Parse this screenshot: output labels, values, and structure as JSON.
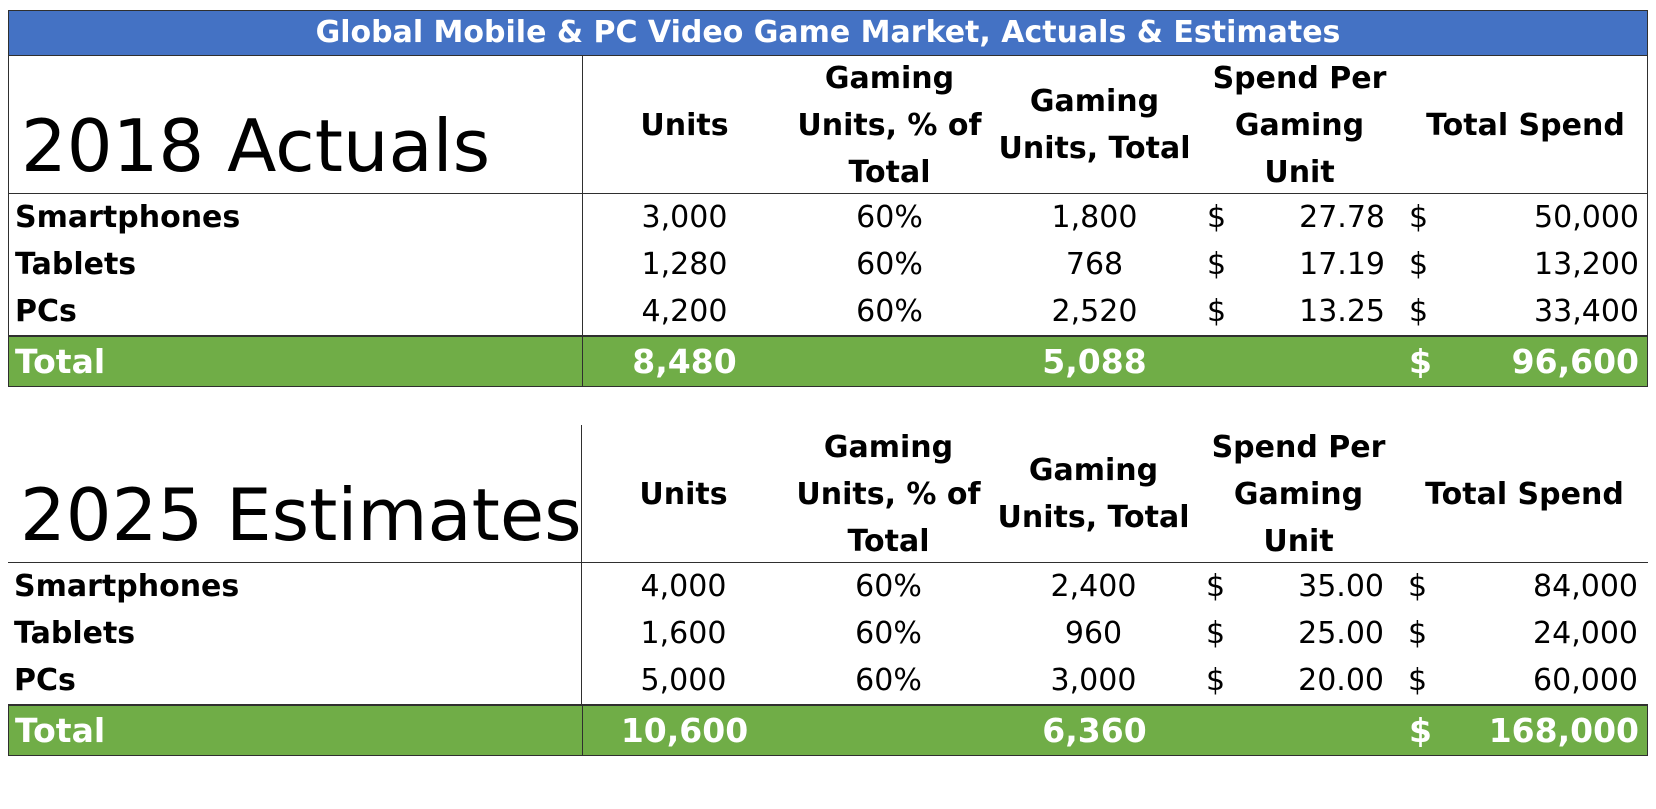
{
  "title": "Global Mobile & PC Video Game Market, Actuals & Estimates",
  "columns": {
    "units": "Units",
    "pct": [
      "Gaming",
      "Units, % of",
      "Total"
    ],
    "gaming_units": [
      "Gaming",
      "Units, Total"
    ],
    "spend_per_unit": [
      "Spend Per",
      "Gaming Unit"
    ],
    "total_spend": "Total Spend"
  },
  "currency_symbol": "$",
  "actuals": {
    "heading": "2018 Actuals",
    "rows": [
      {
        "label": "Smartphones",
        "units": "3,000",
        "pct": "60%",
        "gaming_units": "1,800",
        "spend_per_unit": "27.78",
        "total_spend": "50,000"
      },
      {
        "label": "Tablets",
        "units": "1,280",
        "pct": "60%",
        "gaming_units": "768",
        "spend_per_unit": "17.19",
        "total_spend": "13,200"
      },
      {
        "label": "PCs",
        "units": "4,200",
        "pct": "60%",
        "gaming_units": "2,520",
        "spend_per_unit": "13.25",
        "total_spend": "33,400"
      }
    ],
    "total": {
      "label": "Total",
      "units": "8,480",
      "gaming_units": "5,088",
      "total_spend": "96,600"
    }
  },
  "estimates": {
    "heading": "2025 Estimates",
    "rows": [
      {
        "label": "Smartphones",
        "units": "4,000",
        "pct": "60%",
        "gaming_units": "2,400",
        "spend_per_unit": "35.00",
        "total_spend": "84,000"
      },
      {
        "label": "Tablets",
        "units": "1,600",
        "pct": "60%",
        "gaming_units": "960",
        "spend_per_unit": "25.00",
        "total_spend": "24,000"
      },
      {
        "label": "PCs",
        "units": "5,000",
        "pct": "60%",
        "gaming_units": "3,000",
        "spend_per_unit": "20.00",
        "total_spend": "60,000"
      }
    ],
    "total": {
      "label": "Total",
      "units": "10,600",
      "gaming_units": "6,360",
      "total_spend": "168,000"
    }
  },
  "colors": {
    "title_bar": "#4472c4",
    "total_row": "#70ad47"
  }
}
